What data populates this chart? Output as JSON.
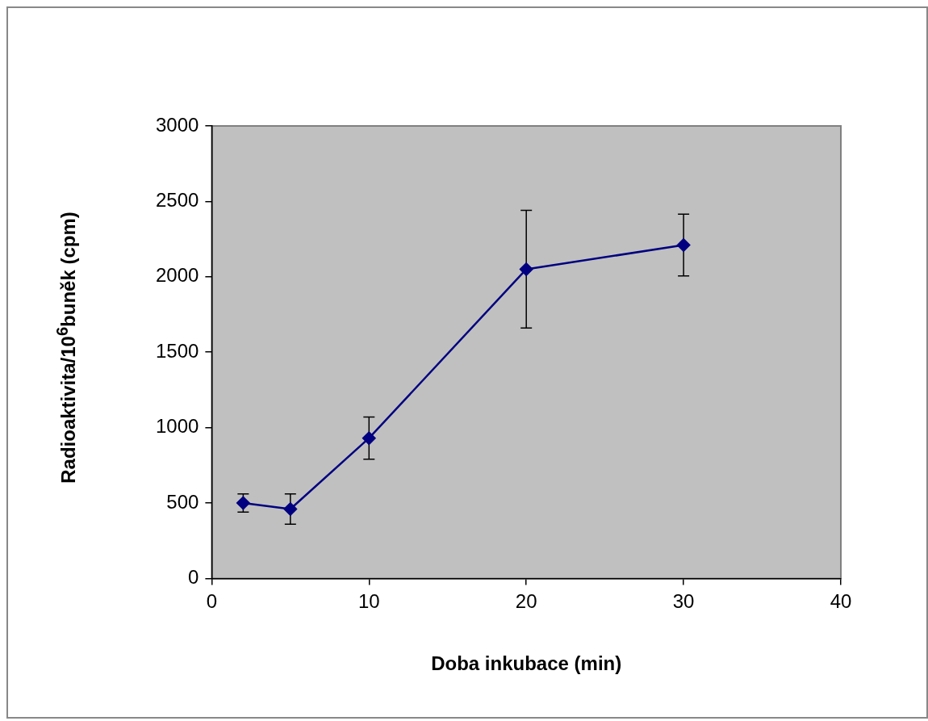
{
  "chart_data": {
    "type": "line",
    "xlabel": "Doba inkubace (min)",
    "ylabel": "Radioaktivita/10$^{6}$buněk (cpm)",
    "x": [
      2,
      5,
      10,
      20,
      30
    ],
    "series": [
      {
        "color": "#000080",
        "values": [
          500,
          460,
          930,
          2050,
          2210
        ],
        "errors": [
          60,
          100,
          140,
          390,
          205
        ]
      }
    ],
    "xlim": [
      0,
      40
    ],
    "xticks": [
      0,
      10,
      20,
      30,
      40
    ],
    "ylim": [
      0,
      3000
    ],
    "yticks": [
      0,
      500,
      1000,
      1500,
      2000,
      2500,
      3000
    ],
    "grid": false,
    "legend": false,
    "marker": "diamond",
    "line_style": "solid"
  }
}
